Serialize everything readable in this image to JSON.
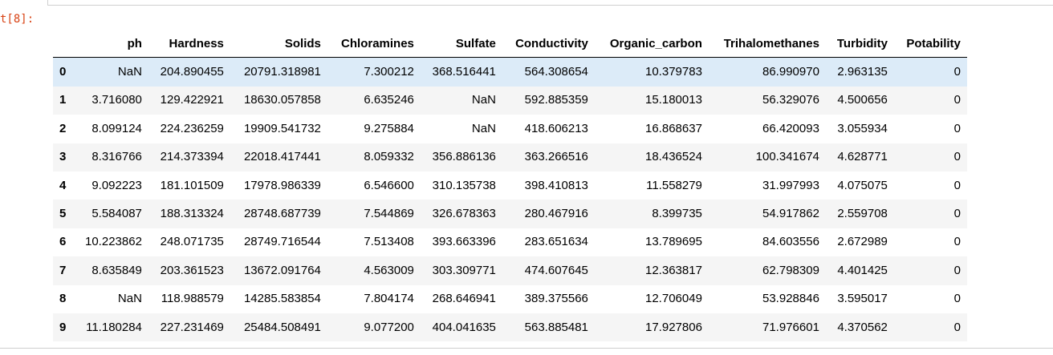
{
  "cell": {
    "prompt": "t[8]:"
  },
  "dataframe": {
    "columns": [
      "ph",
      "Hardness",
      "Solids",
      "Chloramines",
      "Sulfate",
      "Conductivity",
      "Organic_carbon",
      "Trihalomethanes",
      "Turbidity",
      "Potability"
    ],
    "rows": [
      {
        "index": "0",
        "cells": [
          "NaN",
          "204.890455",
          "20791.318981",
          "7.300212",
          "368.516441",
          "564.308654",
          "10.379783",
          "86.990970",
          "2.963135",
          "0"
        ]
      },
      {
        "index": "1",
        "cells": [
          "3.716080",
          "129.422921",
          "18630.057858",
          "6.635246",
          "NaN",
          "592.885359",
          "15.180013",
          "56.329076",
          "4.500656",
          "0"
        ]
      },
      {
        "index": "2",
        "cells": [
          "8.099124",
          "224.236259",
          "19909.541732",
          "9.275884",
          "NaN",
          "418.606213",
          "16.868637",
          "66.420093",
          "3.055934",
          "0"
        ]
      },
      {
        "index": "3",
        "cells": [
          "8.316766",
          "214.373394",
          "22018.417441",
          "8.059332",
          "356.886136",
          "363.266516",
          "18.436524",
          "100.341674",
          "4.628771",
          "0"
        ]
      },
      {
        "index": "4",
        "cells": [
          "9.092223",
          "181.101509",
          "17978.986339",
          "6.546600",
          "310.135738",
          "398.410813",
          "11.558279",
          "31.997993",
          "4.075075",
          "0"
        ]
      },
      {
        "index": "5",
        "cells": [
          "5.584087",
          "188.313324",
          "28748.687739",
          "7.544869",
          "326.678363",
          "280.467916",
          "8.399735",
          "54.917862",
          "2.559708",
          "0"
        ]
      },
      {
        "index": "6",
        "cells": [
          "10.223862",
          "248.071735",
          "28749.716544",
          "7.513408",
          "393.663396",
          "283.651634",
          "13.789695",
          "84.603556",
          "2.672989",
          "0"
        ]
      },
      {
        "index": "7",
        "cells": [
          "8.635849",
          "203.361523",
          "13672.091764",
          "4.563009",
          "303.309771",
          "474.607645",
          "12.363817",
          "62.798309",
          "4.401425",
          "0"
        ]
      },
      {
        "index": "8",
        "cells": [
          "NaN",
          "118.988579",
          "14285.583854",
          "7.804174",
          "268.646941",
          "389.375566",
          "12.706049",
          "53.928846",
          "3.595017",
          "0"
        ]
      },
      {
        "index": "9",
        "cells": [
          "11.180284",
          "227.231469",
          "25484.508491",
          "9.077200",
          "404.041635",
          "563.885481",
          "17.927806",
          "71.976601",
          "4.370562",
          "0"
        ]
      }
    ],
    "highlighted_row": 0
  },
  "colors": {
    "prompt": "#d84315",
    "row_highlight": "#dcebf8",
    "row_stripe": "#f5f5f5"
  }
}
